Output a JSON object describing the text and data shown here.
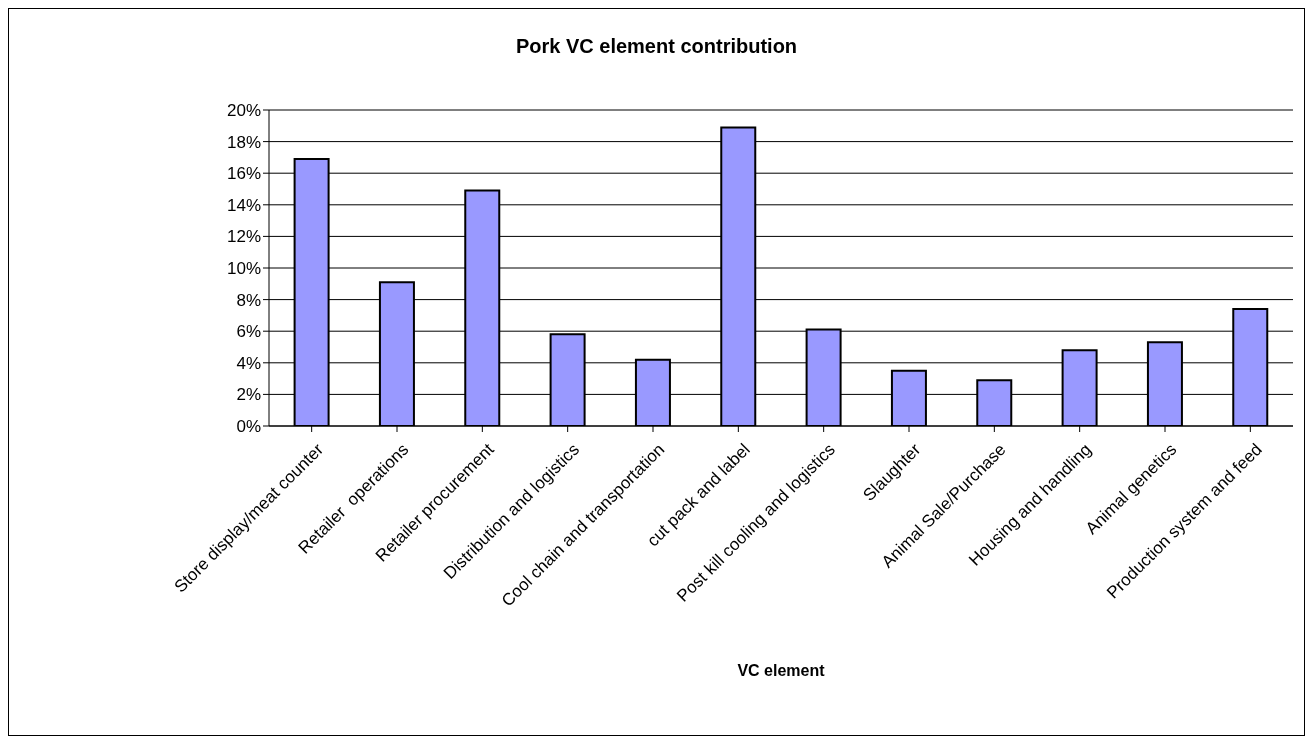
{
  "chart_data": {
    "type": "bar",
    "title": "Pork VC element contribution",
    "xlabel": "VC element",
    "categories": [
      "Store display/meat counter",
      "Retailer  operations",
      "Retailer procurement",
      "Distribution and logistics",
      "Cool chain and transportation",
      "cut pack and label",
      "Post kill cooling and logistics",
      "Slaughter",
      "Animal Sale/Purchase",
      "Housing and handling",
      "Animal genetics",
      "Production system and feed"
    ],
    "values": [
      16.9,
      9.1,
      14.9,
      5.8,
      4.2,
      18.9,
      6.1,
      3.5,
      2.9,
      4.8,
      5.3,
      7.4
    ],
    "color": "#9999ff",
    "ylim": [
      0,
      20
    ],
    "yticks": [
      {
        "value": 0,
        "label": "0%"
      },
      {
        "value": 2,
        "label": "2%"
      },
      {
        "value": 4,
        "label": "4%"
      },
      {
        "value": 6,
        "label": "6%"
      },
      {
        "value": 8,
        "label": "8%"
      },
      {
        "value": 10,
        "label": "10%"
      },
      {
        "value": 12,
        "label": "12%"
      },
      {
        "value": 14,
        "label": "14%"
      },
      {
        "value": 16,
        "label": "16%"
      },
      {
        "value": 18,
        "label": "18%"
      },
      {
        "value": 20,
        "label": "20%"
      }
    ],
    "grid": "y",
    "legend": false
  }
}
